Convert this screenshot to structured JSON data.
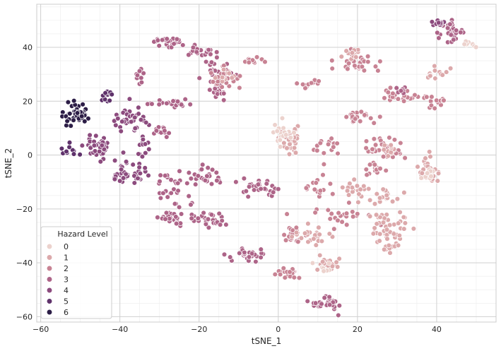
{
  "chart_data": {
    "type": "scatter",
    "title": "",
    "xlabel": "tSNE_1",
    "ylabel": "tSNE_2",
    "xlim": [
      -61,
      55
    ],
    "ylim": [
      -62,
      56
    ],
    "xticks": [
      -60,
      -40,
      -20,
      0,
      20,
      40
    ],
    "yticks": [
      -60,
      -40,
      -20,
      0,
      20,
      40
    ],
    "minor_grid": true,
    "grid": true,
    "legend": {
      "title": "Hazard Level",
      "position": "lower-left",
      "entries": [
        "0",
        "1",
        "2",
        "3",
        "4",
        "5",
        "6"
      ]
    },
    "colors": [
      "#ecd2cd",
      "#dca9ab",
      "#c88394",
      "#ad6488",
      "#8c4b7e",
      "#5f326b",
      "#2c1d46"
    ],
    "clusters": [
      {
        "level": 6,
        "cx": -51,
        "cy": 15,
        "sx": 2.5,
        "sy": 3,
        "n": 40
      },
      {
        "level": 5,
        "cx": -44,
        "cy": 22,
        "sx": 2,
        "sy": 2,
        "n": 12
      },
      {
        "level": 5,
        "cx": -53,
        "cy": 2,
        "sx": 2,
        "sy": 1.5,
        "n": 10
      },
      {
        "level": 4,
        "cx": -45,
        "cy": 3,
        "sx": 3,
        "sy": 3,
        "n": 40
      },
      {
        "level": 4,
        "cx": -37,
        "cy": 13,
        "sx": 3,
        "sy": 4,
        "n": 35
      },
      {
        "level": 4,
        "cx": -38,
        "cy": -7,
        "sx": 4,
        "sy": 2.5,
        "n": 40
      },
      {
        "level": 4,
        "cx": -34,
        "cy": 3,
        "sx": 1.5,
        "sy": 3,
        "n": 12
      },
      {
        "level": 3,
        "cx": -35,
        "cy": 28,
        "sx": 1.5,
        "sy": 3,
        "n": 12
      },
      {
        "level": 3,
        "cx": -28,
        "cy": 19,
        "sx": 4,
        "sy": 1,
        "n": 25
      },
      {
        "level": 3,
        "cx": -28,
        "cy": 42,
        "sx": 3,
        "sy": 1.5,
        "n": 25
      },
      {
        "level": 3,
        "cx": -20,
        "cy": 39,
        "sx": 3,
        "sy": 1.5,
        "n": 20
      },
      {
        "level": 3,
        "cx": -16,
        "cy": 32,
        "sx": 3,
        "sy": 2.5,
        "n": 20
      },
      {
        "level": 3,
        "cx": -16,
        "cy": 24,
        "sx": 2,
        "sy": 2,
        "n": 15
      },
      {
        "level": 3,
        "cx": -29,
        "cy": 9,
        "sx": 2,
        "sy": 2,
        "n": 12
      },
      {
        "level": 3,
        "cx": -26,
        "cy": -12,
        "sx": 3,
        "sy": 4,
        "n": 30
      },
      {
        "level": 3,
        "cx": -18,
        "cy": -7,
        "sx": 3,
        "sy": 3,
        "n": 25
      },
      {
        "level": 3,
        "cx": -28,
        "cy": -23,
        "sx": 3,
        "sy": 2,
        "n": 25
      },
      {
        "level": 3,
        "cx": -17,
        "cy": -24,
        "sx": 4,
        "sy": 2,
        "n": 30
      },
      {
        "level": 3,
        "cx": -5,
        "cy": -12,
        "sx": 5,
        "sy": 2,
        "n": 30
      },
      {
        "level": 3,
        "cx": -8,
        "cy": -37,
        "sx": 3.5,
        "sy": 1.5,
        "n": 30
      },
      {
        "level": 3,
        "cx": 12,
        "cy": -55,
        "sx": 3,
        "sy": 2,
        "n": 30
      },
      {
        "level": 3,
        "cx": 44,
        "cy": 46,
        "sx": 2,
        "sy": 2.5,
        "n": 30
      },
      {
        "level": 2,
        "cx": -13,
        "cy": 29,
        "sx": 2.5,
        "sy": 3,
        "n": 25
      },
      {
        "level": 2,
        "cx": -6,
        "cy": 35,
        "sx": 2,
        "sy": 1,
        "n": 10
      },
      {
        "level": 2,
        "cx": 3,
        "cy": -44,
        "sx": 2,
        "sy": 2,
        "n": 20
      },
      {
        "level": 2,
        "cx": 3,
        "cy": -30,
        "sx": 3,
        "sy": 4,
        "n": 20
      },
      {
        "level": 2,
        "cx": 10,
        "cy": -13,
        "sx": 3,
        "sy": 3,
        "n": 15
      },
      {
        "level": 2,
        "cx": 17,
        "cy": -23,
        "sx": 4,
        "sy": 3,
        "n": 25
      },
      {
        "level": 2,
        "cx": 20,
        "cy": 14,
        "sx": 4,
        "sy": 2,
        "n": 20
      },
      {
        "level": 2,
        "cx": 12,
        "cy": 3,
        "sx": 3,
        "sy": 3,
        "n": 15
      },
      {
        "level": 2,
        "cx": 27,
        "cy": 3,
        "sx": 3,
        "sy": 4,
        "n": 35
      },
      {
        "level": 2,
        "cx": 30,
        "cy": 22,
        "sx": 4,
        "sy": 2,
        "n": 25
      },
      {
        "level": 2,
        "cx": 40,
        "cy": 20,
        "sx": 2,
        "sy": 2,
        "n": 15
      },
      {
        "level": 2,
        "cx": 20,
        "cy": 34,
        "sx": 4,
        "sy": 2.5,
        "n": 30
      },
      {
        "level": 2,
        "cx": 8,
        "cy": 26,
        "sx": 2.5,
        "sy": 1.5,
        "n": 12
      },
      {
        "level": 2,
        "cx": 24,
        "cy": -5,
        "sx": 3,
        "sy": 2,
        "n": 15
      },
      {
        "level": 1,
        "cx": -13,
        "cy": 30,
        "sx": 2,
        "sy": 2,
        "n": 10
      },
      {
        "level": 1,
        "cx": 3,
        "cy": 6,
        "sx": 2,
        "sy": 4,
        "n": 30
      },
      {
        "level": 1,
        "cx": 9,
        "cy": -30,
        "sx": 3,
        "sy": 2.5,
        "n": 25
      },
      {
        "level": 1,
        "cx": 13,
        "cy": -41,
        "sx": 3,
        "sy": 2,
        "n": 20
      },
      {
        "level": 1,
        "cx": 20,
        "cy": -13,
        "sx": 3,
        "sy": 3,
        "n": 20
      },
      {
        "level": 1,
        "cx": 28,
        "cy": -28,
        "sx": 4,
        "sy": 6,
        "n": 55
      },
      {
        "level": 1,
        "cx": 27,
        "cy": -15,
        "sx": 3,
        "sy": 3,
        "n": 20
      },
      {
        "level": 1,
        "cx": 38,
        "cy": -6,
        "sx": 1.5,
        "sy": 4,
        "n": 30
      },
      {
        "level": 1,
        "cx": 40,
        "cy": 30,
        "sx": 2,
        "sy": 2,
        "n": 12
      },
      {
        "level": 1,
        "cx": 19,
        "cy": 37,
        "sx": 2,
        "sy": 1.5,
        "n": 12
      },
      {
        "level": 1,
        "cx": 28,
        "cy": 2,
        "sx": 2,
        "sy": 2,
        "n": 12
      },
      {
        "level": 0,
        "cx": 1,
        "cy": 8,
        "sx": 2,
        "sy": 2.5,
        "n": 20
      },
      {
        "level": 0,
        "cx": 38,
        "cy": -6,
        "sx": 1,
        "sy": 3,
        "n": 10
      },
      {
        "level": 0,
        "cx": 48,
        "cy": 41,
        "sx": 1.5,
        "sy": 1,
        "n": 8
      },
      {
        "level": 0,
        "cx": 12,
        "cy": -42,
        "sx": 2,
        "sy": 1.5,
        "n": 8
      },
      {
        "level": 4,
        "cx": 40,
        "cy": 49,
        "sx": 1.5,
        "sy": 1,
        "n": 10
      },
      {
        "level": 3,
        "cx": 32,
        "cy": 24,
        "sx": 1.5,
        "sy": 1,
        "n": 8
      }
    ]
  }
}
